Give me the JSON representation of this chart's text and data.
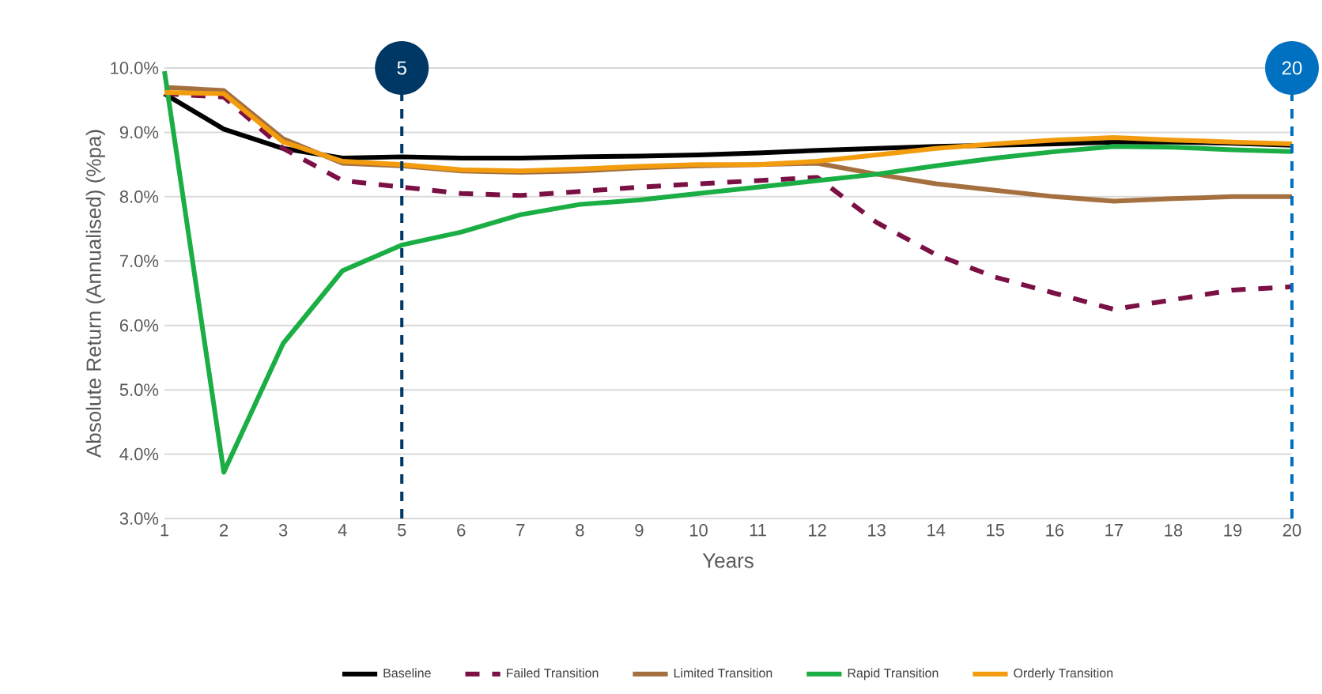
{
  "chart_data": {
    "type": "line",
    "xlabel": "Years",
    "ylabel": "Absolute Return (Annualised) (%pa)",
    "x": [
      1,
      2,
      3,
      4,
      5,
      6,
      7,
      8,
      9,
      10,
      11,
      12,
      13,
      14,
      15,
      16,
      17,
      18,
      19,
      20
    ],
    "xlim": [
      1,
      20
    ],
    "xticks": [
      1,
      2,
      3,
      4,
      5,
      6,
      7,
      8,
      9,
      10,
      11,
      12,
      13,
      14,
      15,
      16,
      17,
      18,
      19,
      20
    ],
    "ylim": [
      3,
      10
    ],
    "yticks": [
      {
        "value": 3,
        "label": "3.0%"
      },
      {
        "value": 4,
        "label": "4.0%"
      },
      {
        "value": 5,
        "label": "5.0%"
      },
      {
        "value": 6,
        "label": "6.0%"
      },
      {
        "value": 7,
        "label": "7.0%"
      },
      {
        "value": 8,
        "label": "8.0%"
      },
      {
        "value": 9,
        "label": "9.0%"
      },
      {
        "value": 10,
        "label": "10.0%"
      }
    ],
    "grid": "y",
    "legend": "bottom",
    "line_style": "solid",
    "ref_lines": [
      {
        "axis": "x",
        "value": 5,
        "label": "5",
        "color": "#003865",
        "line_style": "dashed"
      },
      {
        "axis": "x",
        "value": 20,
        "label": "20",
        "color": "#0070c0",
        "line_style": "dashed"
      }
    ],
    "series": [
      {
        "name": "Baseline",
        "color": "#000000",
        "values": [
          9.6,
          9.05,
          8.75,
          8.6,
          8.62,
          8.6,
          8.6,
          8.62,
          8.63,
          8.65,
          8.68,
          8.72,
          8.75,
          8.78,
          8.8,
          8.82,
          8.85,
          8.85,
          8.83,
          8.8
        ]
      },
      {
        "name": "Failed Transition",
        "color": "#7b1045",
        "line_style": "dashed",
        "values": [
          9.6,
          9.55,
          8.75,
          8.25,
          8.15,
          8.05,
          8.02,
          8.08,
          8.15,
          8.2,
          8.25,
          8.3,
          7.6,
          7.1,
          6.75,
          6.5,
          6.25,
          6.4,
          6.55,
          6.6
        ]
      },
      {
        "name": "Limited Transition",
        "color": "#a5703f",
        "values": [
          9.7,
          9.65,
          8.9,
          8.52,
          8.48,
          8.4,
          8.38,
          8.4,
          8.45,
          8.48,
          8.5,
          8.52,
          8.35,
          8.2,
          8.1,
          8.0,
          7.93,
          7.97,
          8.0,
          8.0
        ]
      },
      {
        "name": "Rapid Transition",
        "color": "#1aae45",
        "values": [
          9.95,
          3.72,
          5.72,
          6.85,
          7.25,
          7.45,
          7.72,
          7.88,
          7.95,
          8.05,
          8.15,
          8.25,
          8.35,
          8.48,
          8.6,
          8.7,
          8.78,
          8.77,
          8.73,
          8.7
        ]
      },
      {
        "name": "Orderly Transition",
        "color": "#f29c0e",
        "values": [
          9.62,
          9.6,
          8.85,
          8.55,
          8.5,
          8.42,
          8.4,
          8.43,
          8.47,
          8.5,
          8.5,
          8.55,
          8.65,
          8.75,
          8.82,
          8.88,
          8.92,
          8.88,
          8.85,
          8.82
        ]
      }
    ]
  }
}
